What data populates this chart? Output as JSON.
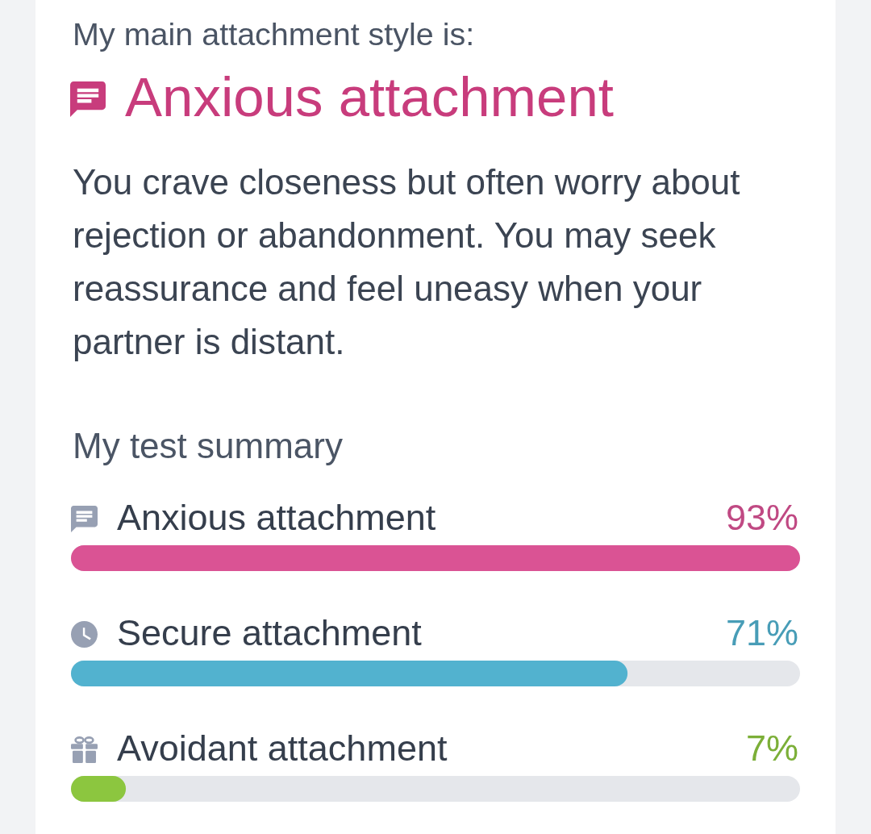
{
  "chart_data": {
    "type": "bar",
    "orientation": "horizontal",
    "title": "My test summary",
    "annotations": [
      "My main attachment style is:",
      "Anxious attachment",
      "You crave closeness but often worry about rejection or abandonment. You may seek reassurance and feel uneasy when your partner is distant."
    ],
    "categories": [
      "Anxious attachment",
      "Secure attachment",
      "Avoidant attachment"
    ],
    "values": [
      93,
      71,
      7
    ],
    "value_labels": [
      "93%",
      "71%",
      "7%"
    ],
    "colors": [
      "#da5394",
      "#52b2cf",
      "#8cc63f"
    ],
    "xlim": [
      0,
      93
    ],
    "tick_labels": "y"
  }
}
